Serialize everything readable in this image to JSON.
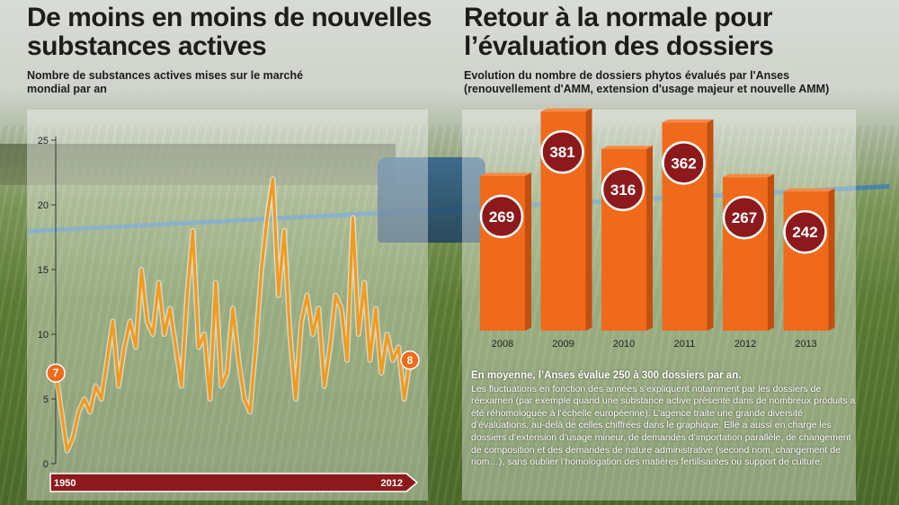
{
  "left": {
    "title_line1": "De moins en moins de nouvelles",
    "title_line2": "substances actives",
    "subtitle_line1": "Nombre de substances actives mises sur le marché",
    "subtitle_line2": "mondial par an"
  },
  "right": {
    "title_line1": "Retour à la normale pour",
    "title_line2": "l’évaluation des dossiers",
    "subtitle_line1": "Evolution du nombre de dossiers phytos évalués par l'Anses",
    "subtitle_line2": "(renouvellement d'AMM, extension d'usage majeur et nouvelle AMM)"
  },
  "note": {
    "lead": "En moyenne, l’Anses évalue 250 à 300 dossiers par an.",
    "body": "Les fluctuations  en fonction des années s’expliquent notamment par les dossiers de réexamen (par exemple quand une substance active présente dans de nombreux produits a été réhomologuée à l’échelle européenne). L’agence traite une grande diversité d’évaluations, au-delà de celles chiffrées dans le graphique. Elle a aussi en charge les dossiers d’extension d’usage mineur, de demandes d’importation parallèle, de changement de composition et des demandes de nature administrative (second nom, changement de nom…), sans oublier l’homologation des matières fertilisantes ou support de culture."
  },
  "colors": {
    "line": "#f39a1e",
    "bar": "#f06a1c",
    "bubble": "#8c1a1d",
    "arrow": "#8c1a1d"
  },
  "chart_data": [
    {
      "type": "line",
      "title": "De moins en moins de nouvelles substances actives",
      "subtitle": "Nombre de substances actives mises sur le marché mondial par an",
      "x": [
        1950,
        1951,
        1952,
        1953,
        1954,
        1955,
        1956,
        1957,
        1958,
        1959,
        1960,
        1961,
        1962,
        1963,
        1964,
        1965,
        1966,
        1967,
        1968,
        1969,
        1970,
        1971,
        1972,
        1973,
        1974,
        1975,
        1976,
        1977,
        1978,
        1979,
        1980,
        1981,
        1982,
        1983,
        1984,
        1985,
        1986,
        1987,
        1988,
        1989,
        1990,
        1991,
        1992,
        1993,
        1994,
        1995,
        1996,
        1997,
        1998,
        1999,
        2000,
        2001,
        2002,
        2003,
        2004,
        2005,
        2006,
        2007,
        2008,
        2009,
        2010,
        2011,
        2012
      ],
      "series": [
        {
          "values": [
            7,
            4,
            1,
            2,
            4,
            5,
            4,
            6,
            5,
            8,
            11,
            6,
            9,
            11,
            9,
            15,
            11,
            10,
            14,
            10,
            12,
            9,
            6,
            13,
            18,
            9,
            10,
            5,
            14,
            6,
            7,
            12,
            8,
            5,
            4,
            9,
            15,
            19,
            22,
            13,
            18,
            10,
            5,
            11,
            13,
            10,
            12,
            6,
            9,
            13,
            12,
            8,
            19,
            10,
            14,
            8,
            12,
            7,
            10,
            8,
            9,
            5,
            8
          ]
        }
      ],
      "start_label": "7",
      "end_label": "8",
      "axis_start_label": "1950",
      "axis_end_label": "2012",
      "yticks": [
        0,
        5,
        10,
        15,
        20,
        25
      ],
      "ylim": [
        0,
        25
      ],
      "grid": false
    },
    {
      "type": "bar",
      "title": "Retour à la normale pour l’évaluation des dossiers",
      "subtitle": "Evolution du nombre de dossiers phytos évalués par l'Anses (renouvellement d'AMM, extension d'usage majeur et nouvelle AMM)",
      "categories": [
        "2008",
        "2009",
        "2010",
        "2011",
        "2012",
        "2013"
      ],
      "values": [
        269,
        381,
        316,
        362,
        267,
        242
      ],
      "value_labels": [
        "269",
        "381",
        "316",
        "362",
        "267",
        "242"
      ],
      "ylim": [
        0,
        400
      ]
    }
  ]
}
